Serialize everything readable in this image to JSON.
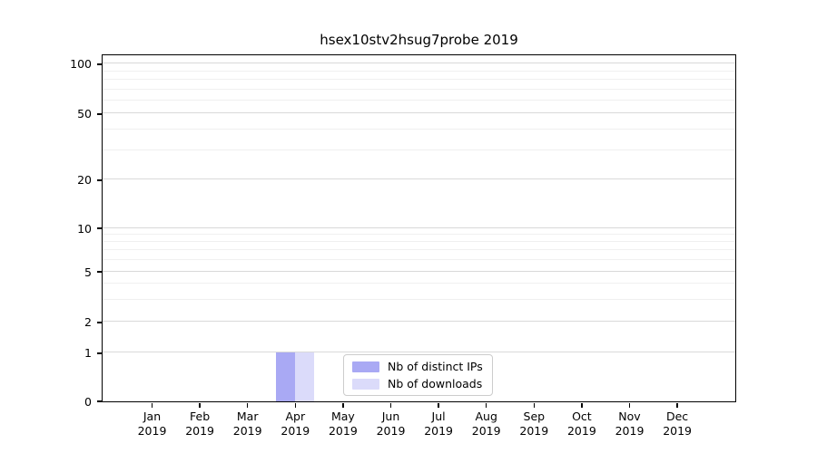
{
  "chart_data": {
    "type": "bar",
    "title": "hsex10stv2hsug7probe 2019",
    "x_axis": {
      "months": [
        "Jan",
        "Feb",
        "Mar",
        "Apr",
        "May",
        "Jun",
        "Jul",
        "Aug",
        "Sep",
        "Oct",
        "Nov",
        "Dec"
      ],
      "year": "2019"
    },
    "y_axis": {
      "scale": "symlog",
      "major_ticks": [
        0,
        1,
        2,
        5,
        10,
        20,
        50,
        100
      ],
      "minor_ticks": [
        3,
        4,
        6,
        7,
        8,
        9,
        30,
        40,
        60,
        70,
        80,
        90
      ],
      "ylim": [
        0,
        110
      ]
    },
    "series": [
      {
        "name": "Nb of distinct IPs",
        "color": "#a9a9f4",
        "values": [
          0,
          0,
          0,
          1,
          0,
          0,
          0,
          0,
          0,
          0,
          0,
          0
        ]
      },
      {
        "name": "Nb of downloads",
        "color": "#dbdbfa",
        "values": [
          0,
          0,
          0,
          1,
          0,
          0,
          0,
          0,
          0,
          0,
          0,
          0
        ]
      }
    ],
    "legend": {
      "position": "lower center"
    },
    "grid": true,
    "colors": {
      "major_grid": "#d9d9d9",
      "minor_grid": "#f0f0f0",
      "spine": "#000000",
      "text": "#000000"
    }
  }
}
